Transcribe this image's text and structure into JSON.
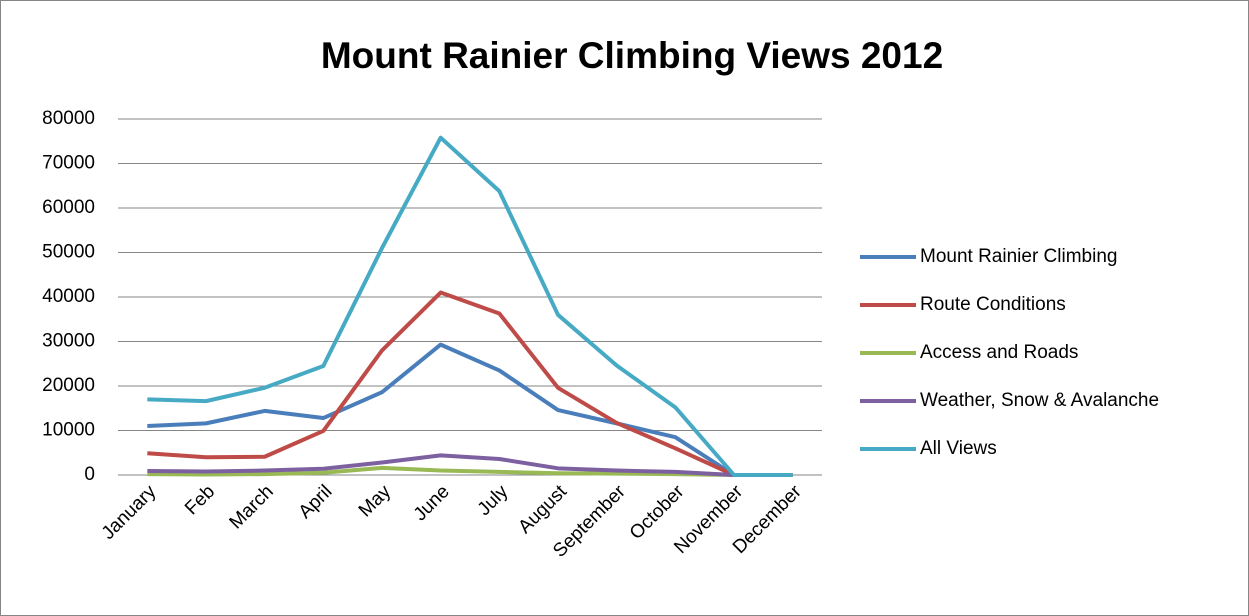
{
  "chart_data": {
    "type": "line",
    "title": "Mount Rainier Climbing Views 2012",
    "categories": [
      "January",
      "Feb",
      "March",
      "April",
      "May",
      "June",
      "July",
      "August",
      "September",
      "October",
      "November",
      "December"
    ],
    "series": [
      {
        "name": "Mount Rainier Climbing",
        "color": "#4a7ebb",
        "values": [
          11000,
          11600,
          14400,
          12800,
          18600,
          29300,
          23500,
          14600,
          11600,
          8500,
          0,
          0
        ]
      },
      {
        "name": "Route Conditions",
        "color": "#be4b48",
        "values": [
          4900,
          4000,
          4100,
          9900,
          28000,
          41000,
          36300,
          19600,
          11700,
          6000,
          0,
          0
        ]
      },
      {
        "name": "Access and Roads",
        "color": "#98b954",
        "values": [
          200,
          100,
          200,
          500,
          1600,
          1000,
          700,
          400,
          300,
          200,
          0,
          0
        ]
      },
      {
        "name": "Weather, Snow & Avalanche",
        "color": "#7d60a0",
        "values": [
          900,
          800,
          1000,
          1400,
          2800,
          4400,
          3600,
          1500,
          1000,
          700,
          0,
          0
        ]
      },
      {
        "name": "All Views",
        "color": "#46aac5",
        "values": [
          17000,
          16600,
          19600,
          24500,
          51000,
          75800,
          63800,
          36000,
          24600,
          15200,
          0,
          0
        ]
      }
    ],
    "ylim": [
      0,
      80000
    ],
    "yticks": [
      0,
      10000,
      20000,
      30000,
      40000,
      50000,
      60000,
      70000,
      80000
    ],
    "grid": true,
    "legend": "right"
  }
}
